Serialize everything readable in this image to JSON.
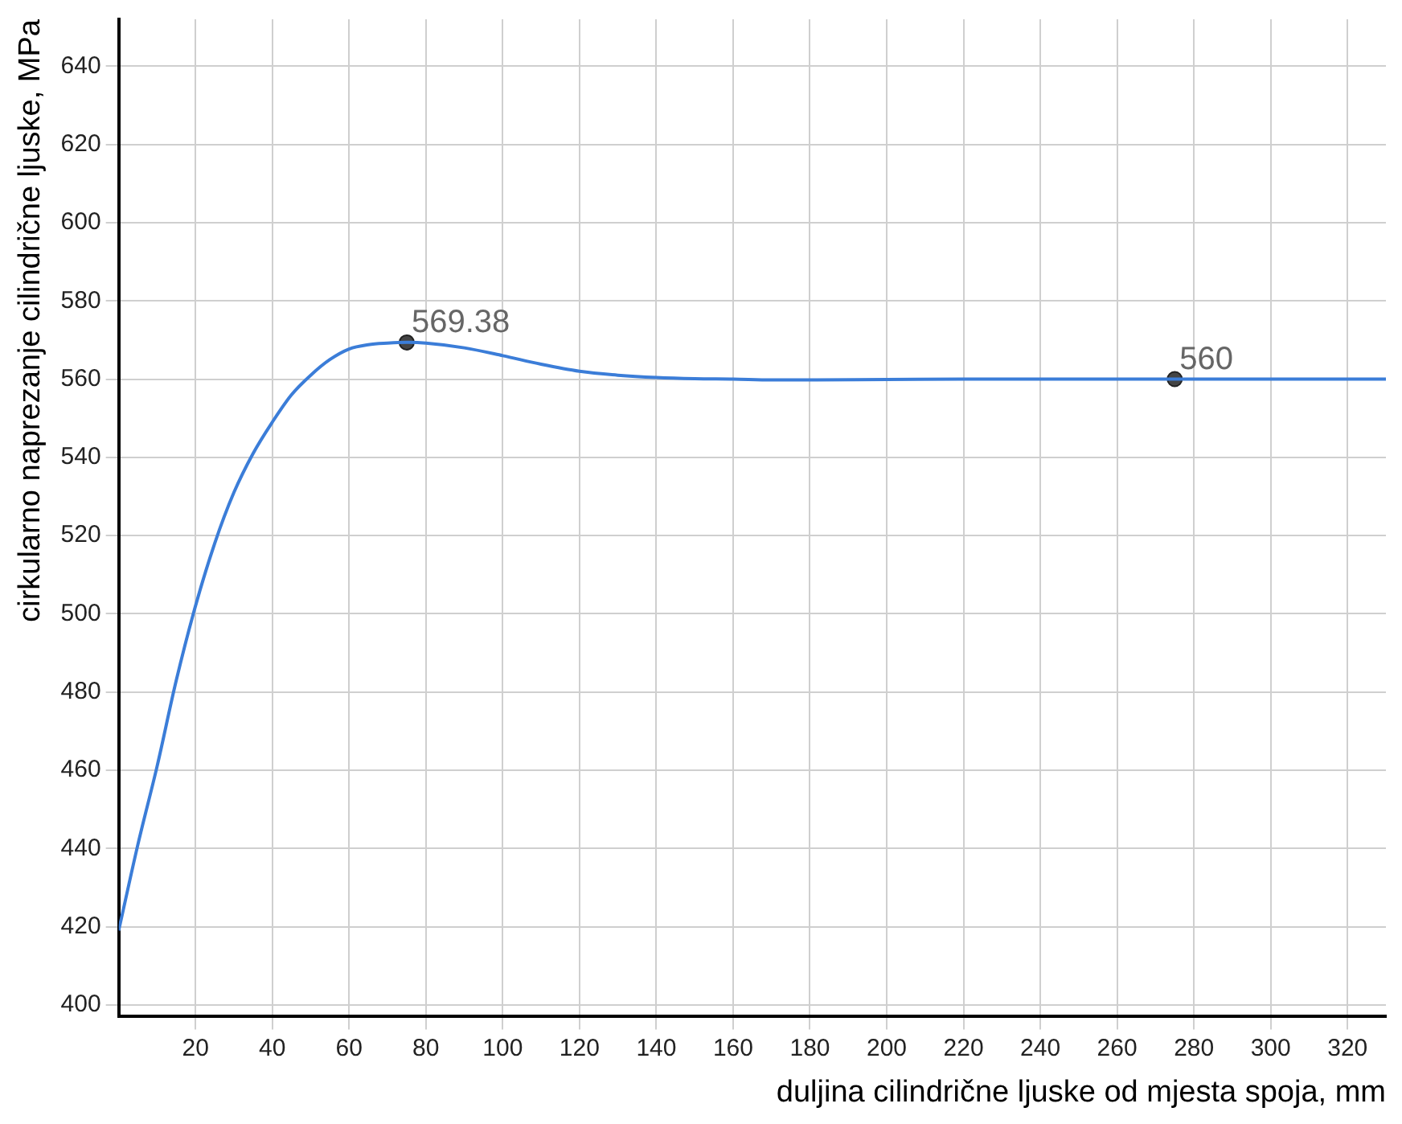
{
  "chart_data": {
    "type": "line",
    "ylabel": "cirkularno naprezanje cilindrične ljuske, MPa",
    "xlabel": "duljina cilindrične ljuske od mjesta spoja, mm",
    "series": [
      {
        "color": "#3b7dd8",
        "x": [
          0,
          5,
          10,
          15,
          20,
          25,
          30,
          35,
          40,
          45,
          50,
          55,
          60,
          65,
          70,
          75,
          80,
          90,
          100,
          110,
          120,
          130,
          140,
          150,
          160,
          170,
          180,
          200,
          220,
          240,
          260,
          280,
          300,
          330
        ],
        "values": [
          419,
          441,
          461,
          483,
          502,
          518,
          531,
          541,
          549,
          556,
          561,
          565,
          567.7,
          568.8,
          569.2,
          569.4,
          569.2,
          568,
          566,
          563.8,
          562,
          561,
          560.4,
          560.1,
          560,
          559.8,
          559.8,
          559.9,
          560,
          560,
          560,
          560,
          560,
          560
        ]
      },
      {
        "type": "scatter",
        "color": "#444444",
        "marker": "circle",
        "x": [
          75,
          275
        ],
        "values": [
          569.38,
          560
        ],
        "value_labels": [
          "569.38",
          "560"
        ]
      }
    ],
    "xlim": [
      0,
      330
    ],
    "ylim": [
      397,
      652
    ],
    "xticks": [
      20,
      40,
      60,
      80,
      100,
      120,
      140,
      160,
      180,
      200,
      220,
      240,
      260,
      280,
      300,
      320
    ],
    "yticks": [
      400,
      420,
      440,
      460,
      480,
      500,
      520,
      540,
      560,
      580,
      600,
      620,
      640
    ],
    "grid": true,
    "legend": false,
    "marker": "none",
    "line_style": "solid"
  }
}
